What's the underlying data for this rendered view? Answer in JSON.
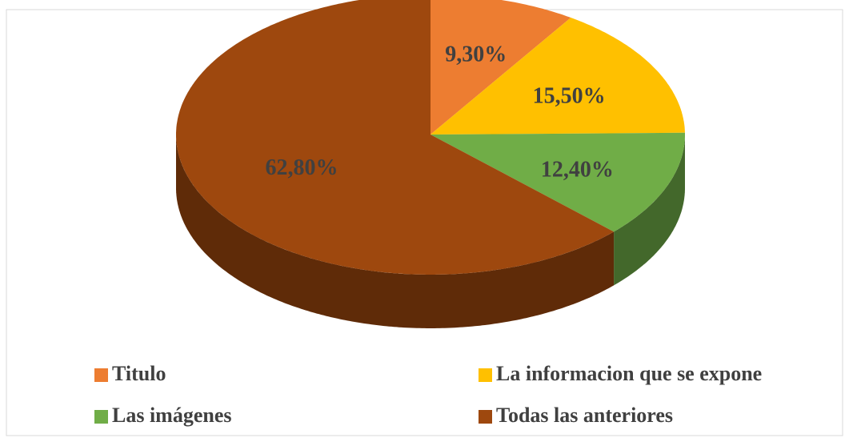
{
  "chart_data": {
    "type": "pie",
    "categories": [
      "Titulo",
      "La informacion que se expone",
      "Las imágenes",
      "Todas las anteriores"
    ],
    "values": [
      9.3,
      15.5,
      12.4,
      62.8
    ],
    "value_labels": [
      "9,30%",
      "15,50%",
      "12,40%",
      "62,80%"
    ],
    "colors": [
      "#ed7d31",
      "#ffc000",
      "#70ad47",
      "#9e480e"
    ],
    "legend": "bottom"
  }
}
